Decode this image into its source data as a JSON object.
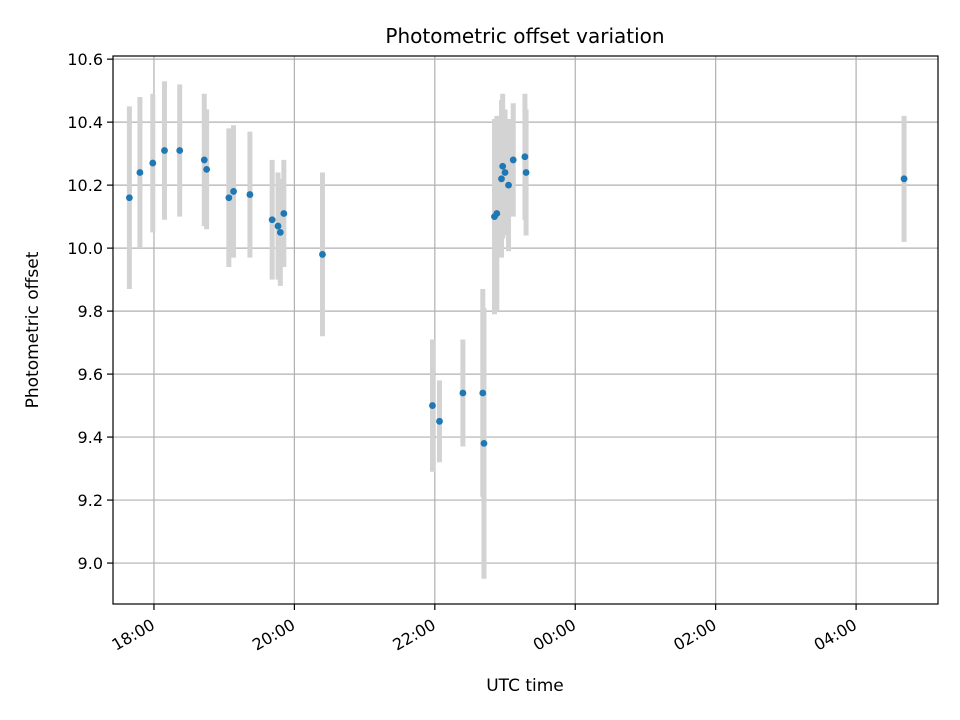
{
  "chart_data": {
    "type": "scatter",
    "title": "Photometric offset variation",
    "xlabel": "UTC time",
    "ylabel": "Photometric offset",
    "x_axis": {
      "kind": "time",
      "xlim": [
        "17:25",
        "05:10"
      ],
      "ticks": [
        "18:00",
        "20:00",
        "22:00",
        "00:00",
        "02:00",
        "04:00"
      ]
    },
    "y_axis": {
      "ylim": [
        8.87,
        10.61
      ],
      "ticks": [
        "9.0",
        "9.2",
        "9.4",
        "9.6",
        "9.8",
        "10.0",
        "10.2",
        "10.4",
        "10.6"
      ]
    },
    "grid": true,
    "colors": {
      "point": "#1f77b4",
      "errorbar": "#d3d3d3",
      "grid": "#b0b0b0"
    },
    "points": [
      {
        "t": "17:39",
        "y": 10.16,
        "err": 0.29
      },
      {
        "t": "17:48",
        "y": 10.24,
        "err": 0.24
      },
      {
        "t": "17:59",
        "y": 10.27,
        "err": 0.22
      },
      {
        "t": "18:09",
        "y": 10.31,
        "err": 0.22
      },
      {
        "t": "18:22",
        "y": 10.31,
        "err": 0.21
      },
      {
        "t": "18:43",
        "y": 10.28,
        "err": 0.21
      },
      {
        "t": "18:45",
        "y": 10.25,
        "err": 0.19
      },
      {
        "t": "19:04",
        "y": 10.16,
        "err": 0.22
      },
      {
        "t": "19:08",
        "y": 10.18,
        "err": 0.21
      },
      {
        "t": "19:22",
        "y": 10.17,
        "err": 0.2
      },
      {
        "t": "19:41",
        "y": 10.09,
        "err": 0.19
      },
      {
        "t": "19:46",
        "y": 10.07,
        "err": 0.17
      },
      {
        "t": "19:48",
        "y": 10.05,
        "err": 0.17
      },
      {
        "t": "19:51",
        "y": 10.11,
        "err": 0.17
      },
      {
        "t": "20:24",
        "y": 9.98,
        "err": 0.26
      },
      {
        "t": "21:58",
        "y": 9.5,
        "err": 0.21
      },
      {
        "t": "22:04",
        "y": 9.45,
        "err": 0.13
      },
      {
        "t": "22:24",
        "y": 9.54,
        "err": 0.17
      },
      {
        "t": "22:41",
        "y": 9.54,
        "err": 0.33
      },
      {
        "t": "22:42",
        "y": 9.38,
        "err": 0.43
      },
      {
        "t": "22:51",
        "y": 10.1,
        "err": 0.31
      },
      {
        "t": "22:53",
        "y": 10.11,
        "err": 0.31
      },
      {
        "t": "22:57",
        "y": 10.22,
        "err": 0.25
      },
      {
        "t": "22:58",
        "y": 10.26,
        "err": 0.23
      },
      {
        "t": "23:00",
        "y": 10.24,
        "err": 0.2
      },
      {
        "t": "23:03",
        "y": 10.2,
        "err": 0.21
      },
      {
        "t": "23:07",
        "y": 10.28,
        "err": 0.18
      },
      {
        "t": "23:17",
        "y": 10.29,
        "err": 0.2
      },
      {
        "t": "23:18",
        "y": 10.24,
        "err": 0.2
      },
      {
        "t": "04:41",
        "y": 10.22,
        "err": 0.2
      }
    ]
  }
}
